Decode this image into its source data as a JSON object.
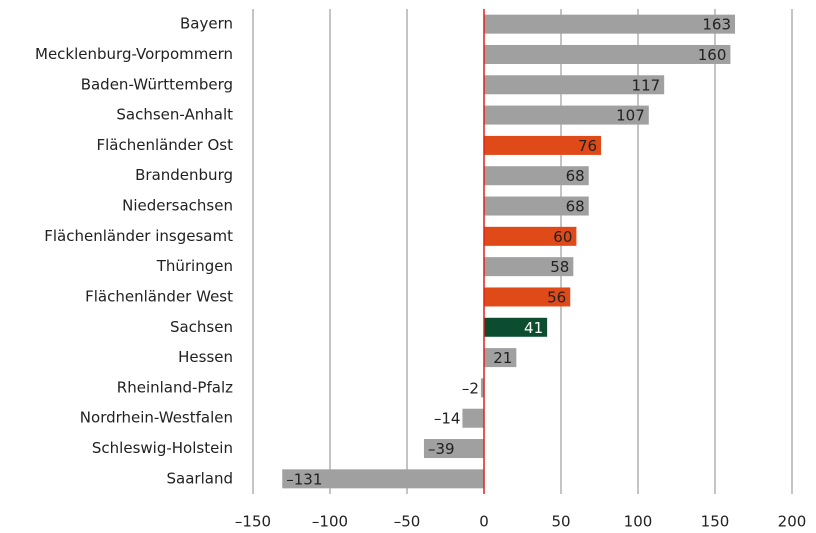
{
  "chart_data": {
    "type": "barh",
    "categories": [
      "Bayern",
      "Mecklenburg-Vorpommern",
      "Baden-Württemberg",
      "Sachsen-Anhalt",
      "Flächenländer Ost",
      "Brandenburg",
      "Niedersachsen",
      "Flächenländer insgesamt",
      "Thüringen",
      "Flächenländer West",
      "Sachsen",
      "Hessen",
      "Rheinland-Pfalz",
      "Nordrhein-Westfalen",
      "Schleswig-Holstein",
      "Saarland"
    ],
    "values": [
      163,
      160,
      117,
      107,
      76,
      68,
      68,
      60,
      58,
      56,
      41,
      21,
      -2,
      -14,
      -39,
      -131
    ],
    "value_labels": [
      "163",
      "160",
      "117",
      "107",
      "76",
      "68",
      "68",
      "60",
      "58",
      "56",
      "41",
      "21",
      "–2",
      "–14",
      "–39",
      "–131"
    ],
    "colors": [
      "#a0a0a0",
      "#a0a0a0",
      "#a0a0a0",
      "#a0a0a0",
      "#e04a18",
      "#a0a0a0",
      "#a0a0a0",
      "#e04a18",
      "#a0a0a0",
      "#e04a18",
      "#0b4d2e",
      "#a0a0a0",
      "#a0a0a0",
      "#a0a0a0",
      "#a0a0a0",
      "#a0a0a0"
    ],
    "xlim": [
      -150,
      200
    ],
    "xticks": [
      {
        "value": -150,
        "label": "–150"
      },
      {
        "value": -100,
        "label": "–100"
      },
      {
        "value": -50,
        "label": "–50"
      },
      0,
      50,
      100,
      150,
      200
    ],
    "grid": true
  }
}
